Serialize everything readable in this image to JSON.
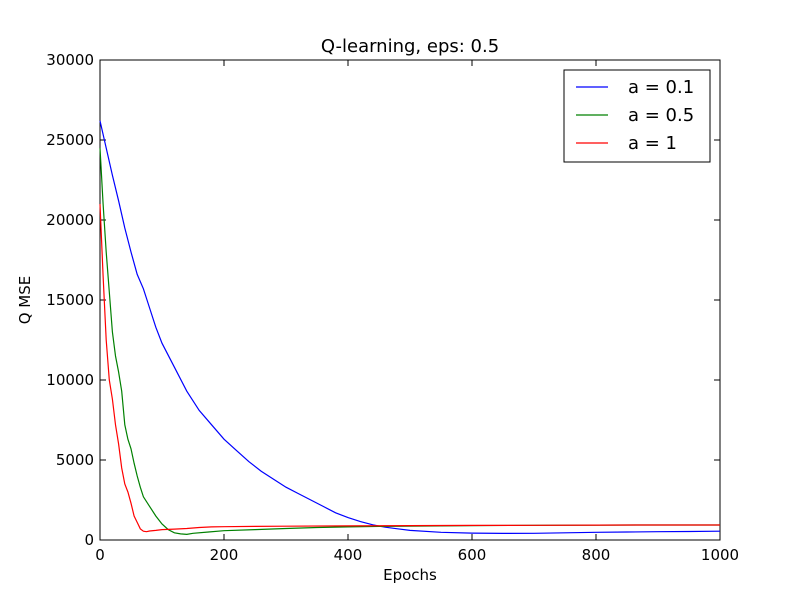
{
  "chart_data": {
    "type": "line",
    "title": "Q-learning, eps: 0.5",
    "xlabel": "Epochs",
    "ylabel": "Q MSE",
    "xlim": [
      0,
      1000
    ],
    "ylim": [
      0,
      30000
    ],
    "xticks": [
      0,
      200,
      400,
      600,
      800,
      1000
    ],
    "yticks": [
      0,
      5000,
      10000,
      15000,
      20000,
      25000,
      30000
    ],
    "grid": false,
    "legend_position": "upper-right",
    "series": [
      {
        "name": "a = 0.1",
        "color": "#0000ff",
        "points": [
          [
            0,
            26200
          ],
          [
            10,
            24500
          ],
          [
            20,
            22800
          ],
          [
            30,
            21200
          ],
          [
            40,
            19500
          ],
          [
            50,
            18000
          ],
          [
            60,
            16600
          ],
          [
            70,
            15700
          ],
          [
            80,
            14500
          ],
          [
            90,
            13300
          ],
          [
            100,
            12300
          ],
          [
            120,
            10800
          ],
          [
            140,
            9300
          ],
          [
            160,
            8100
          ],
          [
            180,
            7200
          ],
          [
            200,
            6300
          ],
          [
            220,
            5600
          ],
          [
            240,
            4900
          ],
          [
            260,
            4300
          ],
          [
            280,
            3800
          ],
          [
            300,
            3300
          ],
          [
            320,
            2900
          ],
          [
            340,
            2500
          ],
          [
            360,
            2100
          ],
          [
            380,
            1700
          ],
          [
            400,
            1400
          ],
          [
            420,
            1150
          ],
          [
            440,
            950
          ],
          [
            460,
            800
          ],
          [
            480,
            700
          ],
          [
            500,
            600
          ],
          [
            550,
            480
          ],
          [
            600,
            430
          ],
          [
            650,
            410
          ],
          [
            700,
            420
          ],
          [
            750,
            450
          ],
          [
            800,
            480
          ],
          [
            850,
            500
          ],
          [
            900,
            520
          ],
          [
            950,
            530
          ],
          [
            1000,
            550
          ]
        ]
      },
      {
        "name": "a = 0.5",
        "color": "#008000",
        "points": [
          [
            0,
            24500
          ],
          [
            5,
            21000
          ],
          [
            10,
            18000
          ],
          [
            15,
            15500
          ],
          [
            20,
            13000
          ],
          [
            25,
            11500
          ],
          [
            30,
            10500
          ],
          [
            35,
            9300
          ],
          [
            40,
            7200
          ],
          [
            45,
            6300
          ],
          [
            50,
            5700
          ],
          [
            55,
            4800
          ],
          [
            60,
            4000
          ],
          [
            65,
            3300
          ],
          [
            70,
            2700
          ],
          [
            80,
            2100
          ],
          [
            90,
            1500
          ],
          [
            100,
            1000
          ],
          [
            110,
            650
          ],
          [
            120,
            450
          ],
          [
            130,
            380
          ],
          [
            140,
            350
          ],
          [
            150,
            420
          ],
          [
            175,
            500
          ],
          [
            200,
            580
          ],
          [
            250,
            650
          ],
          [
            300,
            720
          ],
          [
            350,
            780
          ],
          [
            400,
            820
          ],
          [
            450,
            850
          ],
          [
            500,
            870
          ],
          [
            600,
            900
          ],
          [
            700,
            920
          ],
          [
            800,
            930
          ],
          [
            900,
            935
          ],
          [
            1000,
            940
          ]
        ]
      },
      {
        "name": "a = 1",
        "color": "#ff0000",
        "points": [
          [
            0,
            21000
          ],
          [
            5,
            16500
          ],
          [
            10,
            12500
          ],
          [
            15,
            10000
          ],
          [
            20,
            8800
          ],
          [
            25,
            7200
          ],
          [
            30,
            6000
          ],
          [
            35,
            4500
          ],
          [
            40,
            3500
          ],
          [
            45,
            3000
          ],
          [
            50,
            2300
          ],
          [
            55,
            1500
          ],
          [
            60,
            1100
          ],
          [
            65,
            700
          ],
          [
            70,
            550
          ],
          [
            75,
            520
          ],
          [
            80,
            560
          ],
          [
            90,
            600
          ],
          [
            100,
            650
          ],
          [
            120,
            680
          ],
          [
            140,
            720
          ],
          [
            160,
            780
          ],
          [
            180,
            820
          ],
          [
            200,
            830
          ],
          [
            250,
            850
          ],
          [
            300,
            860
          ],
          [
            400,
            880
          ],
          [
            500,
            900
          ],
          [
            600,
            910
          ],
          [
            700,
            920
          ],
          [
            800,
            930
          ],
          [
            900,
            935
          ],
          [
            1000,
            940
          ]
        ]
      }
    ]
  }
}
